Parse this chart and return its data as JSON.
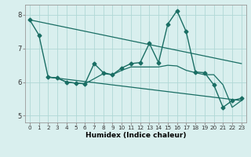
{
  "title": "",
  "xlabel": "Humidex (Indice chaleur)",
  "xlim": [
    -0.5,
    23.5
  ],
  "ylim": [
    4.8,
    8.3
  ],
  "yticks": [
    5,
    6,
    7,
    8
  ],
  "xticks": [
    0,
    1,
    2,
    3,
    4,
    5,
    6,
    7,
    8,
    9,
    10,
    11,
    12,
    13,
    14,
    15,
    16,
    17,
    18,
    19,
    20,
    21,
    22,
    23
  ],
  "background_color": "#d9efee",
  "grid_color": "#b0d8d5",
  "line_color": "#1a6e64",
  "lines": [
    {
      "x": [
        0,
        1,
        2,
        3,
        4,
        5,
        6,
        7,
        8,
        9,
        10,
        11,
        12,
        13,
        14,
        15,
        16,
        17,
        18,
        19,
        20,
        21,
        22,
        23
      ],
      "y": [
        7.85,
        7.4,
        6.15,
        6.12,
        6.0,
        5.97,
        5.95,
        6.55,
        6.28,
        6.22,
        6.42,
        6.55,
        6.58,
        7.15,
        6.58,
        7.72,
        8.12,
        7.5,
        6.3,
        6.28,
        5.92,
        5.25,
        5.45,
        5.52
      ],
      "marker": "D",
      "markersize": 2.5,
      "linewidth": 1.0
    },
    {
      "x": [
        2,
        3,
        4,
        5,
        6,
        7,
        8,
        9,
        10,
        11,
        12,
        13,
        14,
        15,
        16,
        17,
        18,
        19,
        20,
        21,
        22,
        23
      ],
      "y": [
        6.15,
        6.12,
        6.0,
        5.97,
        5.95,
        6.1,
        6.25,
        6.22,
        6.35,
        6.45,
        6.45,
        6.45,
        6.45,
        6.5,
        6.48,
        6.35,
        6.28,
        6.22,
        6.22,
        5.92,
        5.25,
        5.45
      ],
      "marker": null,
      "markersize": 0,
      "linewidth": 0.9
    },
    {
      "x": [
        2,
        23
      ],
      "y": [
        6.15,
        5.45
      ],
      "marker": null,
      "markersize": 0,
      "linewidth": 0.9
    },
    {
      "x": [
        0,
        23
      ],
      "y": [
        7.85,
        6.55
      ],
      "marker": null,
      "markersize": 0,
      "linewidth": 0.9
    }
  ]
}
